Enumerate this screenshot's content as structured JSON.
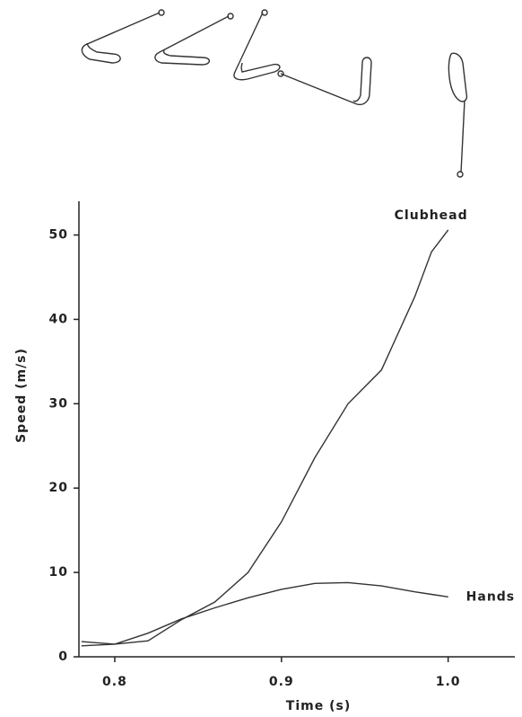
{
  "chart_data": {
    "type": "line",
    "x_label": "Time (s)",
    "y_label": "Speed (m/s)",
    "xlim": [
      0.7785,
      1.04
    ],
    "ylim": [
      0,
      54
    ],
    "xticks": [
      0.8,
      0.9,
      {
        "value": 1,
        "label": "1.0"
      }
    ],
    "yticks": [
      0,
      10,
      20,
      30,
      40,
      50
    ],
    "x": [
      0.78,
      0.8,
      0.82,
      0.84,
      0.86,
      0.88,
      0.9,
      0.92,
      0.94,
      0.96,
      0.98,
      0.99,
      1.0
    ],
    "series": [
      {
        "name": "Clubhead",
        "color": "#333333",
        "values": [
          1.3,
          1.5,
          1.9,
          4.4,
          6.5,
          10,
          16,
          23.6,
          30,
          34,
          42.7,
          48,
          50.6
        ]
      },
      {
        "name": "Hands",
        "color": "#333333",
        "values": [
          1.8,
          1.5,
          2.8,
          4.5,
          5.8,
          7,
          8,
          8.7,
          8.8,
          8.4,
          7.7,
          7.4,
          7.1
        ]
      }
    ]
  }
}
